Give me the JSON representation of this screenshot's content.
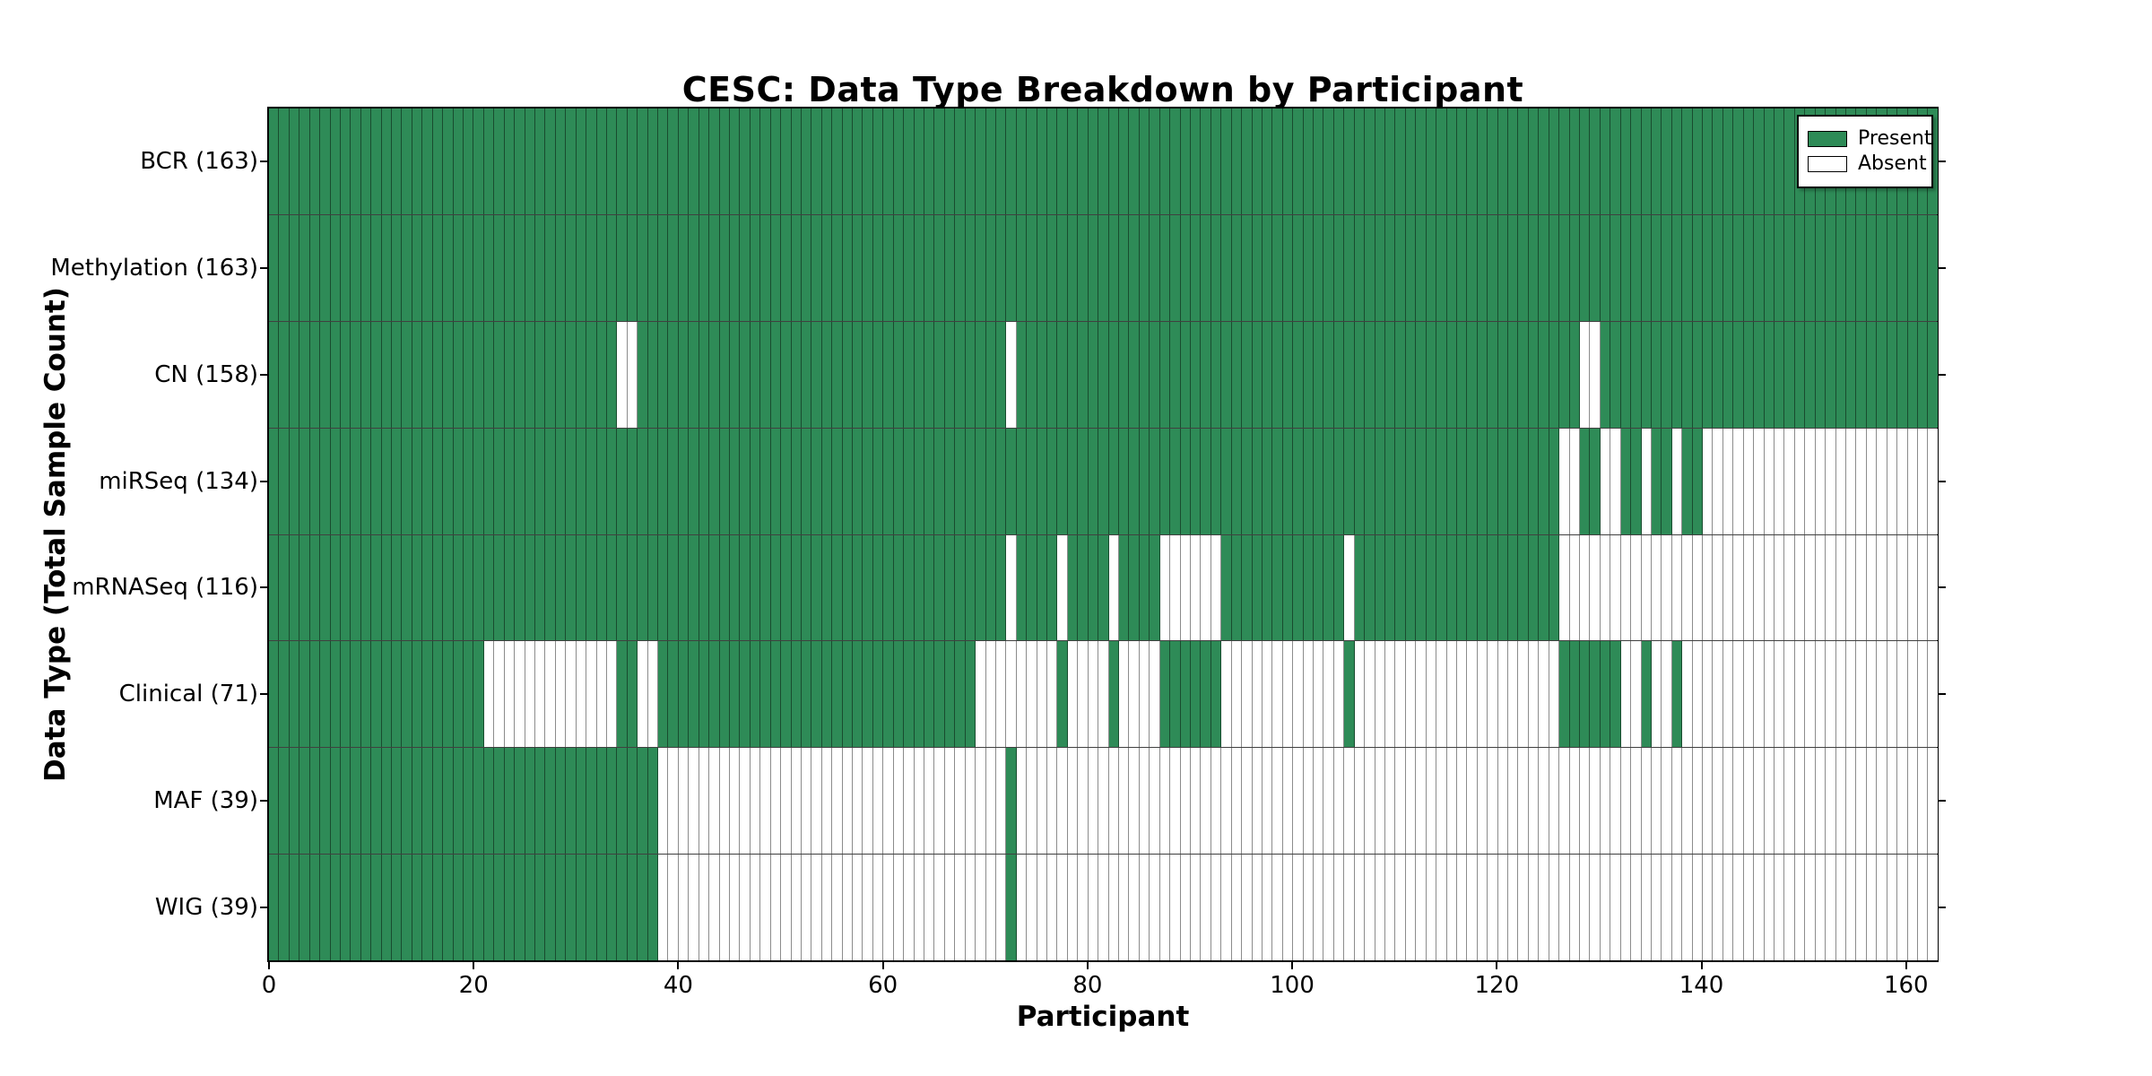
{
  "figure": {
    "colors": {
      "present": "#2e8b57",
      "absent": "#ffffff",
      "grid_line": "rgba(0,0,0,0.45)",
      "frame": "#000000",
      "background": "#ffffff"
    }
  },
  "chart_data": {
    "type": "heatmap",
    "title": "CESC: Data Type Breakdown by Participant",
    "xlabel": "Participant",
    "ylabel": "Data Type (Total Sample Count)",
    "n_participants": 163,
    "x_axis": {
      "ticks": [
        0,
        20,
        40,
        60,
        80,
        100,
        120,
        140,
        160
      ],
      "range": [
        0,
        163
      ]
    },
    "legend_position": "upper right",
    "legend": [
      {
        "label": "Present",
        "color": "#2e8b57"
      },
      {
        "label": "Absent",
        "color": "#ffffff"
      }
    ],
    "value_encoding": {
      "present": 1,
      "absent": 0
    },
    "rows": [
      {
        "label": "BCR (163)",
        "data_type": "BCR",
        "total_sample_count": 163,
        "absent_ranges": []
      },
      {
        "label": "Methylation (163)",
        "data_type": "Methylation",
        "total_sample_count": 163,
        "absent_ranges": []
      },
      {
        "label": "CN (158)",
        "data_type": "CN",
        "total_sample_count": 158,
        "absent_ranges": [
          [
            34,
            35
          ],
          [
            72,
            72
          ],
          [
            128,
            129
          ]
        ]
      },
      {
        "label": "miRSeq (134)",
        "data_type": "miRSeq",
        "total_sample_count": 134,
        "absent_ranges": [
          [
            126,
            127
          ],
          [
            130,
            131
          ],
          [
            134,
            134
          ],
          [
            137,
            137
          ],
          [
            140,
            162
          ]
        ]
      },
      {
        "label": "mRNASeq (116)",
        "data_type": "mRNASeq",
        "total_sample_count": 116,
        "absent_ranges": [
          [
            72,
            72
          ],
          [
            77,
            77
          ],
          [
            82,
            82
          ],
          [
            87,
            92
          ],
          [
            105,
            105
          ],
          [
            126,
            162
          ]
        ]
      },
      {
        "label": "Clinical (71)",
        "data_type": "Clinical",
        "total_sample_count": 71,
        "absent_ranges": [
          [
            21,
            33
          ],
          [
            36,
            37
          ],
          [
            69,
            76
          ],
          [
            78,
            81
          ],
          [
            83,
            86
          ],
          [
            93,
            104
          ],
          [
            106,
            125
          ],
          [
            132,
            133
          ],
          [
            135,
            136
          ],
          [
            138,
            162
          ]
        ]
      },
      {
        "label": "MAF (39)",
        "data_type": "MAF",
        "total_sample_count": 39,
        "absent_ranges": [
          [
            38,
            71
          ],
          [
            73,
            162
          ]
        ]
      },
      {
        "label": "WIG (39)",
        "data_type": "WIG",
        "total_sample_count": 39,
        "absent_ranges": [
          [
            38,
            71
          ],
          [
            73,
            162
          ]
        ]
      }
    ]
  }
}
